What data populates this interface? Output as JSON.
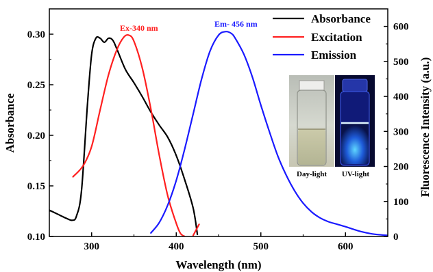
{
  "chart_data": {
    "type": "line",
    "x": {
      "label": "Wavelength (nm)",
      "range": [
        250,
        650
      ],
      "ticks": [
        300,
        400,
        500,
        600
      ]
    },
    "y_left": {
      "label": "Absorbance",
      "range": [
        0.1,
        0.325
      ],
      "ticks": [
        0.1,
        0.15,
        0.2,
        0.25,
        0.3
      ],
      "tick_labels": [
        "0.10",
        "0.15",
        "0.20",
        "0.25",
        "0.30"
      ]
    },
    "y_right": {
      "label": "Fluorescence Intensity (a.u.)",
      "range": [
        0,
        650
      ],
      "ticks": [
        0,
        100,
        200,
        300,
        400,
        500,
        600
      ]
    },
    "series": [
      {
        "name": "Absorbance",
        "color": "#000000",
        "axis": "left",
        "points": [
          [
            250,
            0.126
          ],
          [
            260,
            0.122
          ],
          [
            270,
            0.118
          ],
          [
            277,
            0.116
          ],
          [
            282,
            0.12
          ],
          [
            288,
            0.145
          ],
          [
            295,
            0.23
          ],
          [
            300,
            0.28
          ],
          [
            305,
            0.296
          ],
          [
            310,
            0.296
          ],
          [
            315,
            0.292
          ],
          [
            320,
            0.296
          ],
          [
            325,
            0.294
          ],
          [
            330,
            0.285
          ],
          [
            340,
            0.265
          ],
          [
            350,
            0.252
          ],
          [
            360,
            0.238
          ],
          [
            370,
            0.223
          ],
          [
            380,
            0.21
          ],
          [
            390,
            0.198
          ],
          [
            400,
            0.18
          ],
          [
            410,
            0.156
          ],
          [
            420,
            0.128
          ],
          [
            425,
            0.102
          ]
        ]
      },
      {
        "name": "Excitation",
        "color": "#ff2020",
        "axis": "left",
        "points": [
          [
            278,
            0.159
          ],
          [
            290,
            0.17
          ],
          [
            300,
            0.189
          ],
          [
            310,
            0.225
          ],
          [
            320,
            0.26
          ],
          [
            330,
            0.285
          ],
          [
            338,
            0.297
          ],
          [
            344,
            0.299
          ],
          [
            350,
            0.293
          ],
          [
            360,
            0.266
          ],
          [
            370,
            0.226
          ],
          [
            380,
            0.18
          ],
          [
            390,
            0.14
          ],
          [
            400,
            0.113
          ],
          [
            405,
            0.103
          ],
          [
            410,
            0.1
          ]
        ],
        "extra_points": [
          [
            420,
            0.101
          ],
          [
            427,
            0.112
          ]
        ]
      },
      {
        "name": "Emission",
        "color": "#1a1aff",
        "axis": "right",
        "points": [
          [
            370,
            10
          ],
          [
            380,
            40
          ],
          [
            390,
            90
          ],
          [
            400,
            160
          ],
          [
            410,
            250
          ],
          [
            420,
            350
          ],
          [
            430,
            450
          ],
          [
            440,
            530
          ],
          [
            450,
            575
          ],
          [
            458,
            585
          ],
          [
            465,
            580
          ],
          [
            470,
            565
          ],
          [
            480,
            520
          ],
          [
            490,
            455
          ],
          [
            500,
            375
          ],
          [
            510,
            300
          ],
          [
            520,
            230
          ],
          [
            530,
            175
          ],
          [
            540,
            130
          ],
          [
            550,
            95
          ],
          [
            560,
            70
          ],
          [
            570,
            53
          ],
          [
            580,
            42
          ],
          [
            590,
            35
          ],
          [
            600,
            28
          ],
          [
            610,
            20
          ],
          [
            620,
            13
          ],
          [
            630,
            8
          ],
          [
            640,
            5
          ],
          [
            650,
            3
          ]
        ]
      }
    ],
    "annotations": [
      {
        "text": "Ex-340 nm",
        "color": "#ff2020"
      },
      {
        "text": "Em- 456 nm",
        "color": "#1a1aff"
      }
    ],
    "inset_photos": [
      {
        "caption": "Day-light"
      },
      {
        "caption": "UV-light"
      }
    ],
    "legend": {
      "position": "top-right"
    },
    "grid": false
  }
}
